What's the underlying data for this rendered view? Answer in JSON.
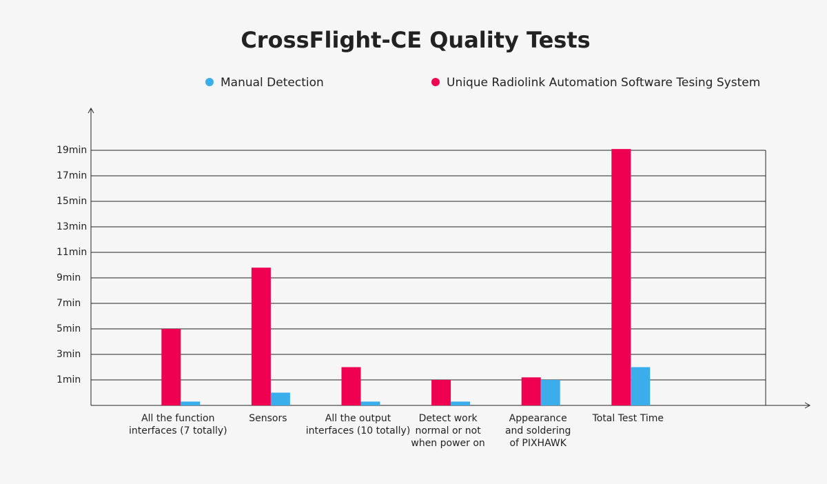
{
  "chart_data": {
    "type": "bar",
    "title": "CrossFlight-CE Quality Tests",
    "categories": [
      "All the function\ninterfaces (7 totally)",
      "Sensors",
      "All the output\ninterfaces (10 totally)",
      "Detect work\nnormal or not\nwhen power on",
      "Appearance\nand soldering\nof PIXHAWK",
      "Total Test Time"
    ],
    "series": [
      {
        "name": "Manual Detection",
        "color": "#3aaeea",
        "values": [
          -0.7,
          0,
          -0.7,
          -0.7,
          1,
          2
        ]
      },
      {
        "name": "Unique Radiolink Automation Software Tesing System",
        "color": "#f00050",
        "values": [
          5,
          9.8,
          2,
          1,
          1.2,
          19.1
        ]
      }
    ],
    "ylim": [
      -1,
      19
    ],
    "yticks": [
      {
        "value": 1,
        "label": "1min"
      },
      {
        "value": 3,
        "label": "3min"
      },
      {
        "value": 5,
        "label": "5min"
      },
      {
        "value": 7,
        "label": "7min"
      },
      {
        "value": 9,
        "label": "9min"
      },
      {
        "value": 11,
        "label": "11min"
      },
      {
        "value": 13,
        "label": "13min"
      },
      {
        "value": 15,
        "label": "15min"
      },
      {
        "value": 17,
        "label": "17min"
      },
      {
        "value": 19,
        "label": "19min"
      }
    ],
    "grid": true
  }
}
